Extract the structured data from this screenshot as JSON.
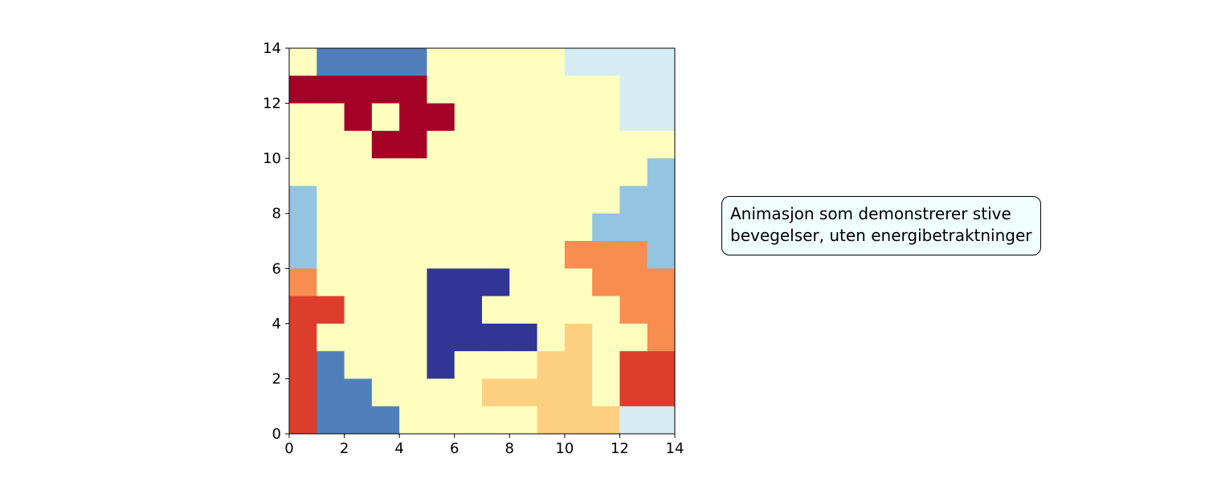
{
  "annotation": {
    "lines": [
      "Animasjon som demonstrerer stive",
      "bevegelser, uten energibetraktninger"
    ]
  },
  "chart_data": {
    "type": "heatmap",
    "title": "",
    "xlabel": "",
    "ylabel": "",
    "xlim": [
      0,
      14
    ],
    "ylim": [
      0,
      14
    ],
    "xticks": [
      "0",
      "2",
      "4",
      "6",
      "8",
      "10",
      "12",
      "14"
    ],
    "yticks": [
      "0",
      "2",
      "4",
      "6",
      "8",
      "10",
      "12",
      "14"
    ],
    "grid": false,
    "colormap": "RdYlBu",
    "palette": {
      "A": "#a50026",
      "R": "#dd3d2d",
      "O": "#f88d52",
      "P": "#fdd081",
      "Y": "#feffbf",
      "L": "#d6ecf3",
      "S": "#94c5e0",
      "M": "#4f80b9",
      "N": "#313695"
    },
    "rows_top_to_bottom": [
      "YMMMMYYYYYLLLL",
      "AAAAAYYYYYYYLL",
      "YYAYAAYYYYYYLL",
      "YYYAAYYYYYYYYY",
      "YYYYYYYYYYYYYS",
      "SYYYYYYYYYYYSS",
      "SYYYYYYYYYYSSS",
      "SYYYYYYYYYOOOS",
      "OYYYYNNNYYYOOO",
      "RRYYYNNYYYYYOO",
      "RYYYYNNNNYPYYO",
      "RMYYYNYYYPPYRR",
      "RMMYYYYPPPPYRR",
      "RMMMYYYYYPPPLL"
    ]
  }
}
